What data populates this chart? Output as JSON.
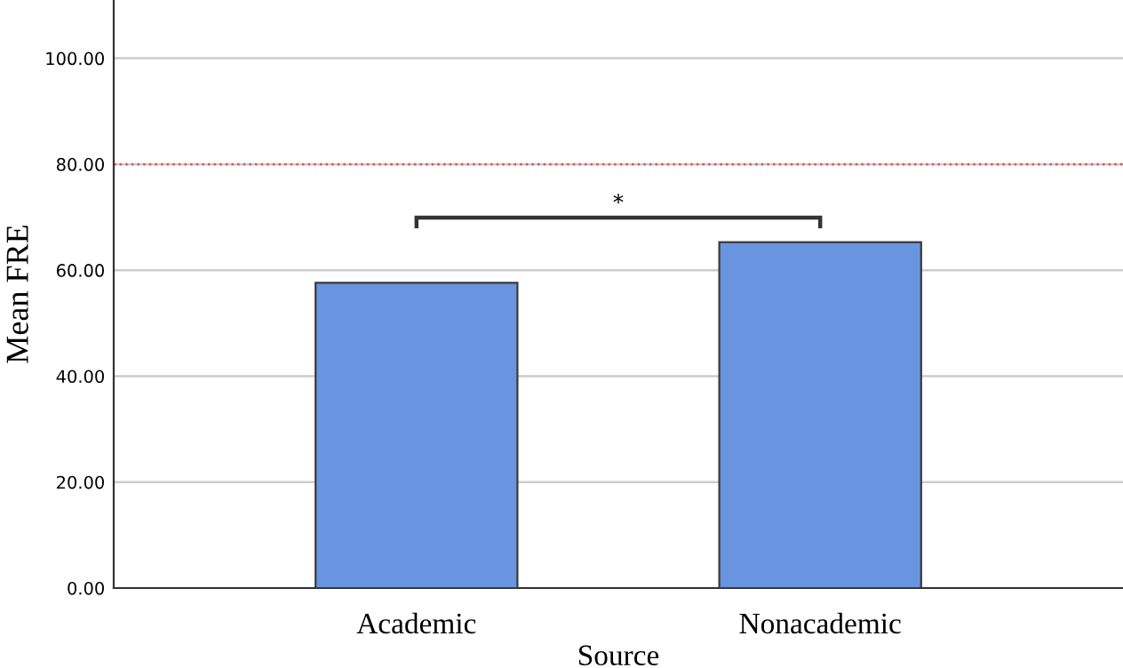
{
  "chart_data": {
    "type": "bar",
    "categories": [
      "Academic",
      "Nonacademic"
    ],
    "values": [
      57.6,
      65.3
    ],
    "color": "#6995e0",
    "xlabel": "Source",
    "ylabel": "Mean FRE",
    "ylim": [
      0,
      111
    ],
    "yticks": [
      {
        "value": 0,
        "label": "0.00"
      },
      {
        "value": 20,
        "label": "20.00"
      },
      {
        "value": 40,
        "label": "40.00"
      },
      {
        "value": 60,
        "label": "60.00"
      },
      {
        "value": 80,
        "label": "80.00"
      },
      {
        "value": 100,
        "label": "100.00"
      }
    ],
    "grid": "y",
    "ref_lines": [
      {
        "axis": "y",
        "value": 80,
        "color": "#d9534f",
        "line_style": "dotted"
      }
    ],
    "annotations": [
      "*"
    ]
  }
}
